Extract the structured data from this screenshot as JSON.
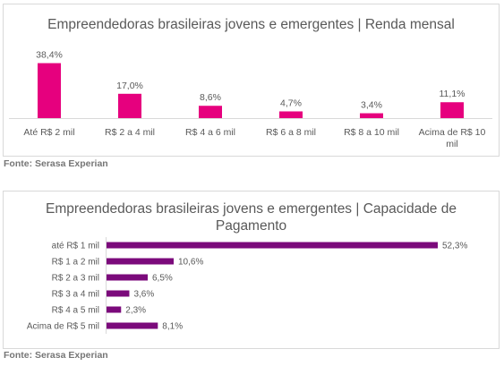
{
  "chart_data": [
    {
      "type": "bar",
      "title": "Empreendedoras brasileiras jovens e emergentes | Renda mensal",
      "categories": [
        "Até R$ 2 mil",
        "R$ 2 a 4 mil",
        "R$ 4 a 6 mil",
        "R$ 6 a 8 mil",
        "R$ 8 a 10 mil",
        "Acima de R$ 10 mil"
      ],
      "values": [
        38.4,
        17.0,
        8.6,
        4.7,
        3.4,
        11.1
      ],
      "value_labels": [
        "38,4%",
        "17,0%",
        "8,6%",
        "4,7%",
        "3,4%",
        "11,1%"
      ],
      "ylim": [
        0,
        40
      ],
      "color": "#e6007e",
      "grid": false,
      "legend": "none"
    },
    {
      "type": "bar",
      "orientation": "horizontal",
      "title": "Empreendedoras brasileiras jovens e emergentes | Capacidade de Pagamento",
      "categories": [
        "até R$ 1 mil",
        "R$ 1 a 2 mil",
        "R$ 2 a 3 mil",
        "R$ 3 a 4 mil",
        "R$ 4 a 5 mil",
        "Acima de R$ 5 mil"
      ],
      "values": [
        52.3,
        10.6,
        6.5,
        3.6,
        2.3,
        8.1
      ],
      "value_labels": [
        "52,3%",
        "10,6%",
        "6,5%",
        "3,6%",
        "2,3%",
        "8,1%"
      ],
      "xlim": [
        0,
        55
      ],
      "color": "#7b0a7b",
      "grid": false,
      "legend": "none"
    }
  ],
  "sources": [
    "Fonte: Serasa Experian",
    "Fonte: Serasa Experian"
  ]
}
